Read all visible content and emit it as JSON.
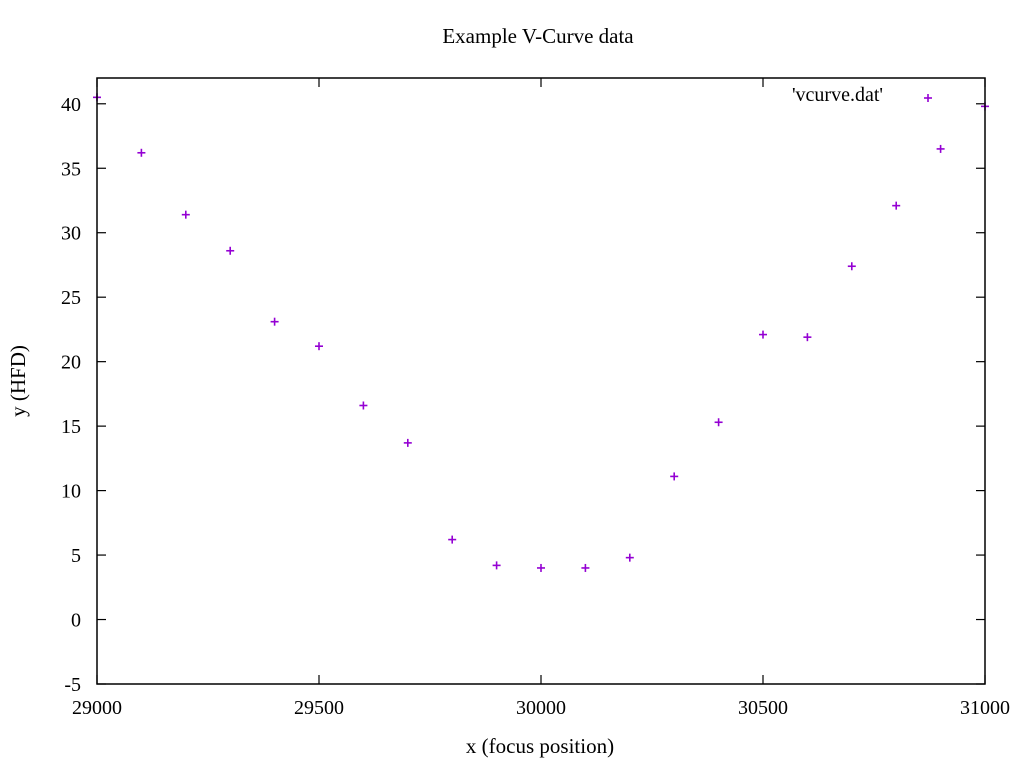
{
  "chart_data": {
    "type": "scatter",
    "title": "Example V-Curve data",
    "xlabel": "x (focus position)",
    "ylabel": "y (HFD)",
    "xlim": [
      29000,
      31000
    ],
    "ylim": [
      -5,
      42
    ],
    "xticks": [
      29000,
      29500,
      30000,
      30500,
      31000
    ],
    "yticks": [
      -5,
      0,
      5,
      10,
      15,
      20,
      25,
      30,
      35,
      40
    ],
    "grid": false,
    "legend_position": "top-right",
    "marker": "plus",
    "series": [
      {
        "name": "'vcurve.dat'",
        "color": "#9400d3",
        "points": [
          {
            "x": 29000,
            "y": 40.5
          },
          {
            "x": 29100,
            "y": 36.2
          },
          {
            "x": 29200,
            "y": 31.4
          },
          {
            "x": 29300,
            "y": 28.6
          },
          {
            "x": 29400,
            "y": 23.1
          },
          {
            "x": 29500,
            "y": 21.2
          },
          {
            "x": 29600,
            "y": 16.6
          },
          {
            "x": 29700,
            "y": 13.7
          },
          {
            "x": 29800,
            "y": 6.2
          },
          {
            "x": 29900,
            "y": 4.2
          },
          {
            "x": 30000,
            "y": 4.0
          },
          {
            "x": 30100,
            "y": 4.0
          },
          {
            "x": 30200,
            "y": 4.8
          },
          {
            "x": 30300,
            "y": 11.1
          },
          {
            "x": 30400,
            "y": 15.3
          },
          {
            "x": 30500,
            "y": 22.1
          },
          {
            "x": 30600,
            "y": 21.9
          },
          {
            "x": 30700,
            "y": 27.4
          },
          {
            "x": 30800,
            "y": 32.1
          },
          {
            "x": 30900,
            "y": 36.5
          },
          {
            "x": 31000,
            "y": 39.8
          }
        ]
      }
    ]
  }
}
